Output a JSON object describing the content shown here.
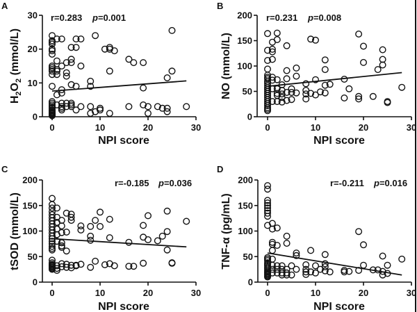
{
  "chart_data": [
    {
      "id": "A",
      "type": "scatter",
      "panel_label": "A",
      "xlabel": "NPI score",
      "ylabel_main": "H",
      "ylabel_sub": "2",
      "ylabel_mid": "O",
      "ylabel_sub2": "2",
      "ylabel_tail": " (mmol/L)",
      "xlim": [
        0,
        30
      ],
      "ylim": [
        0,
        30
      ],
      "xticks": [
        0,
        10,
        20,
        30
      ],
      "yticks": [
        0,
        10,
        20,
        30
      ],
      "stats": {
        "r": "r=0.283",
        "p_label": "p",
        "p_value": "=0.001"
      },
      "stats_position": "top-left",
      "fit_line": {
        "x": [
          0,
          28
        ],
        "y": [
          7.6,
          10.6
        ]
      },
      "points": {
        "x": [
          0,
          0,
          0,
          0,
          0,
          0,
          0,
          0,
          0,
          0,
          0,
          0,
          0,
          0,
          0,
          0,
          0,
          0,
          0,
          0,
          0,
          0,
          0,
          0,
          0,
          0,
          1,
          1,
          1,
          1,
          1,
          1,
          1,
          2,
          2,
          2,
          2,
          2,
          2,
          2,
          2,
          3,
          3,
          3,
          3,
          3,
          4,
          4,
          4,
          4,
          4,
          4,
          4,
          5,
          5,
          5,
          5,
          6,
          6,
          6,
          8,
          8,
          8,
          8,
          9,
          9,
          10,
          10,
          11,
          12,
          12,
          12,
          12,
          13,
          16,
          16,
          17,
          19,
          19,
          19,
          20,
          20,
          22,
          23,
          24,
          24,
          24,
          25,
          25,
          28
        ],
        "y": [
          24,
          22.5,
          22,
          21.5,
          20,
          19.5,
          18.5,
          15,
          14.5,
          14,
          13.5,
          12.5,
          9,
          4.5,
          4,
          3.5,
          3,
          2.5,
          2,
          1.8,
          1.5,
          1.2,
          1,
          0.8,
          0.5,
          0.3,
          23,
          16.5,
          14,
          13.5,
          12.5,
          6.5,
          3.5,
          23,
          15,
          8,
          7,
          4,
          3,
          2.5,
          2,
          16,
          13,
          12,
          4,
          3,
          20.5,
          17,
          16,
          9.5,
          4,
          3.5,
          3,
          23,
          20.5,
          9,
          2,
          23,
          15,
          3,
          10.5,
          9,
          3,
          1,
          24,
          1.5,
          2.5,
          2,
          20,
          20.5,
          20,
          13.5,
          1,
          19.5,
          17,
          3,
          16,
          16,
          8.5,
          3.5,
          3,
          1,
          3,
          2.5,
          11.5,
          2.5,
          1.5,
          25.5,
          13.5,
          3
        ]
      }
    },
    {
      "id": "B",
      "type": "scatter",
      "panel_label": "B",
      "xlabel": "NPI score",
      "ylabel": "NO (mmol/L)",
      "xlim": [
        0,
        30
      ],
      "ylim": [
        0,
        200
      ],
      "xticks": [
        0,
        10,
        20,
        30
      ],
      "yticks": [
        0,
        50,
        100,
        150,
        200
      ],
      "stats": {
        "r": "r=0.231",
        "p_label": "p",
        "p_value": "=0.008"
      },
      "stats_position": "top-left",
      "fit_line": {
        "x": [
          0,
          28
        ],
        "y": [
          60,
          87
        ]
      },
      "points": {
        "x": [
          0,
          0,
          0,
          0,
          0,
          0,
          0,
          0,
          0,
          0,
          0,
          0,
          0,
          0,
          0,
          0,
          0,
          0,
          0,
          0,
          0,
          0,
          0,
          1,
          1,
          1,
          1,
          1,
          1,
          1,
          1,
          2,
          2,
          2,
          2,
          2,
          2,
          2,
          3,
          3,
          3,
          3,
          3,
          4,
          4,
          4,
          4,
          4,
          5,
          5,
          5,
          6,
          6,
          6,
          8,
          8,
          8,
          8,
          9,
          9,
          10,
          10,
          10,
          11,
          12,
          12,
          12,
          12,
          13,
          16,
          16,
          17,
          19,
          19,
          19,
          20,
          20,
          22,
          23,
          24,
          24,
          24,
          25,
          25,
          28
        ],
        "y": [
          164,
          131,
          111,
          94,
          82,
          78,
          75,
          70,
          66,
          62,
          58,
          54,
          50,
          46,
          42,
          38,
          34,
          30,
          26,
          22,
          18,
          15,
          12,
          147,
          133,
          128,
          113,
          78,
          72,
          55,
          30,
          165,
          152,
          73,
          55,
          46,
          42,
          30,
          63,
          52,
          45,
          38,
          29,
          140,
          91,
          75,
          48,
          32,
          55,
          48,
          34,
          96,
          80,
          47,
          65,
          52,
          45,
          35,
          153,
          46,
          151,
          73,
          43,
          49,
          112,
          93,
          62,
          47,
          64,
          74,
          37,
          55,
          163,
          40,
          35,
          139,
          107,
          40,
          93,
          132,
          113,
          102,
          30,
          28,
          58
        ]
      }
    },
    {
      "id": "C",
      "type": "scatter",
      "panel_label": "C",
      "xlabel": "NPI score",
      "ylabel": "tSOD (mmol/L)",
      "xlim": [
        0,
        30
      ],
      "ylim": [
        0,
        200
      ],
      "xticks": [
        0,
        10,
        20,
        30
      ],
      "yticks": [
        0,
        50,
        100,
        150,
        200
      ],
      "stats": {
        "r": "r=-0.185",
        "p_label": "p",
        "p_value": "=0.036"
      },
      "stats_position": "top-right",
      "fit_line": {
        "x": [
          0,
          28
        ],
        "y": [
          85,
          69
        ]
      },
      "points": {
        "x": [
          0,
          0,
          0,
          0,
          0,
          0,
          0,
          0,
          0,
          0,
          0,
          0,
          0,
          0,
          0,
          0,
          0,
          0,
          0,
          0,
          0,
          0,
          0,
          0,
          0,
          0,
          1,
          1,
          1,
          1,
          1,
          1,
          1,
          1,
          1,
          2,
          2,
          2,
          2,
          2,
          2,
          2,
          2,
          3,
          3,
          3,
          3,
          3,
          4,
          4,
          4,
          4,
          4,
          5,
          5,
          6,
          6,
          6,
          8,
          8,
          8,
          8,
          9,
          9,
          10,
          10,
          11,
          12,
          12,
          12,
          13,
          16,
          16,
          17,
          19,
          19,
          19,
          20,
          20,
          22,
          23,
          24,
          24,
          24,
          25,
          25,
          28
        ],
        "y": [
          164,
          152,
          145,
          138,
          132,
          126,
          120,
          114,
          108,
          102,
          96,
          90,
          85,
          80,
          75,
          70,
          66,
          63,
          43,
          38,
          35,
          33,
          31,
          29,
          27,
          25,
          145,
          127,
          117,
          104,
          93,
          80,
          32,
          27,
          23,
          121,
          110,
          97,
          77,
          71,
          68,
          36,
          30,
          135,
          98,
          61,
          35,
          29,
          133,
          127,
          121,
          33,
          28,
          32,
          33,
          110,
          102,
          35,
          109,
          90,
          82,
          29,
          121,
          41,
          137,
          109,
          34,
          123,
          87,
          36,
          32,
          78,
          31,
          31,
          111,
          88,
          37,
          130,
          83,
          81,
          90,
          139,
          99,
          63,
          38,
          37,
          119
        ]
      }
    },
    {
      "id": "D",
      "type": "scatter",
      "panel_label": "D",
      "xlabel": "NPI score",
      "ylabel": "TNF-α (pg/mL)",
      "xlim": [
        0,
        30
      ],
      "ylim": [
        0,
        200
      ],
      "xticks": [
        0,
        10,
        20,
        30
      ],
      "yticks": [
        0,
        50,
        100,
        150,
        200
      ],
      "stats": {
        "r": "r=-0.211",
        "p_label": "p",
        "p_value": "=0.016"
      },
      "stats_position": "top-right",
      "fit_line": {
        "x": [
          0,
          28
        ],
        "y": [
          57,
          14
        ]
      },
      "points": {
        "x": [
          0,
          0,
          0,
          0,
          0,
          0,
          0,
          0,
          0,
          0,
          0,
          0,
          0,
          0,
          0,
          0,
          0,
          0,
          0,
          0,
          0,
          0,
          0,
          0,
          0,
          1,
          1,
          1,
          1,
          1,
          1,
          1,
          1,
          1,
          2,
          2,
          2,
          2,
          2,
          3,
          3,
          3,
          3,
          4,
          4,
          4,
          4,
          4,
          5,
          5,
          6,
          6,
          6,
          8,
          8,
          8,
          8,
          9,
          9,
          10,
          10,
          11,
          12,
          12,
          12,
          12,
          13,
          16,
          16,
          17,
          19,
          19,
          20,
          20,
          22,
          23,
          24,
          24,
          24,
          25,
          25,
          28
        ],
        "y": [
          189,
          182,
          160,
          155,
          150,
          145,
          140,
          135,
          129,
          111,
          48,
          45,
          42,
          38,
          35,
          32,
          29,
          26,
          23,
          20,
          18,
          16,
          14,
          12,
          10,
          115,
          104,
          78,
          74,
          62,
          45,
          33,
          25,
          18,
          106,
          72,
          32,
          25,
          18,
          32,
          25,
          18,
          14,
          90,
          76,
          25,
          18,
          14,
          32,
          14,
          57,
          52,
          25,
          34,
          25,
          20,
          15,
          62,
          20,
          32,
          18,
          25,
          54,
          36,
          30,
          22,
          20,
          23,
          20,
          21,
          99,
          23,
          73,
          33,
          24,
          24,
          51,
          21,
          14,
          33,
          17,
          45
        ]
      }
    }
  ]
}
